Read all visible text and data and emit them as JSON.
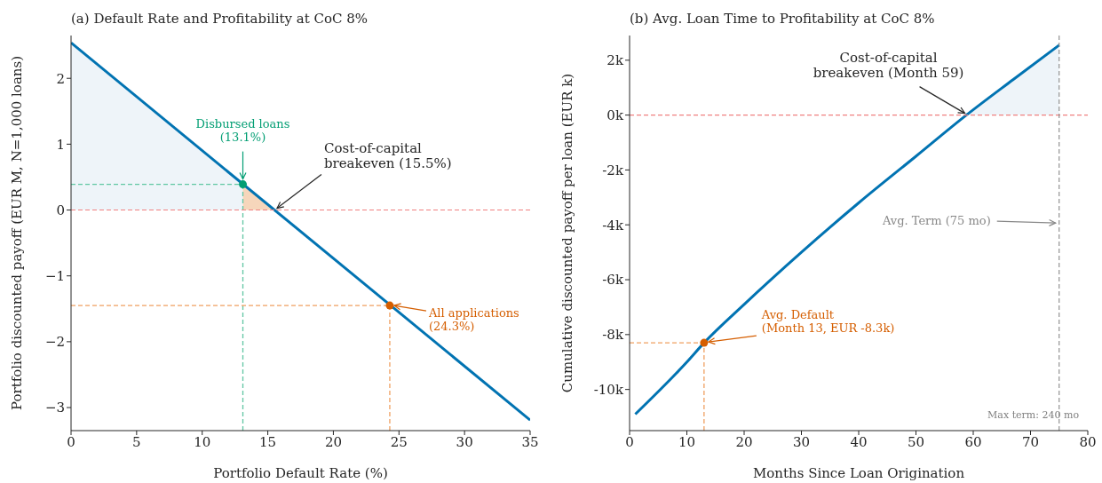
{
  "chart_data": [
    {
      "type": "line",
      "title": "(a) Default Rate and Profitability at CoC 8%",
      "xlabel": "Portfolio Default Rate (%)",
      "ylabel": "Portfolio discounted payoff (EUR M, N=1,000 loans)",
      "xlim": [
        0,
        35
      ],
      "xticks": [
        0,
        5,
        10,
        15,
        20,
        25,
        30,
        35
      ],
      "ylim": [
        -3.35,
        2.65
      ],
      "yticks": [
        {
          "value": -3,
          "label": "−3"
        },
        {
          "value": -2,
          "label": "−2"
        },
        {
          "value": -1,
          "label": "−1"
        },
        0,
        1,
        2
      ],
      "line_style": "solid",
      "series": [
        {
          "type": "area",
          "color": "#eef4f9",
          "x": [
            0,
            13.1
          ],
          "values": [
            2.54,
            0.39
          ]
        },
        {
          "type": "area",
          "color": "#f6d6bb",
          "x": [
            13.1,
            15.5
          ],
          "values": [
            0.39,
            0
          ]
        },
        {
          "type": "line",
          "color": "#0173b2",
          "x": [
            0,
            35
          ],
          "values": [
            2.54,
            -3.19
          ]
        },
        {
          "type": "line",
          "color": "#5fc6a2",
          "line_style": "dashed",
          "x": [
            0,
            13.1
          ],
          "values": [
            0.39,
            0.39
          ]
        },
        {
          "type": "line",
          "color": "#5fc6a2",
          "line_style": "dashed",
          "x": [
            13.1,
            13.1
          ],
          "values": [
            -3.35,
            0.39
          ]
        },
        {
          "type": "line",
          "color": "#f0a060",
          "line_style": "dashed",
          "x": [
            0,
            24.3
          ],
          "values": [
            -1.45,
            -1.45
          ]
        },
        {
          "type": "line",
          "color": "#f0a060",
          "line_style": "dashed",
          "x": [
            24.3,
            24.3
          ],
          "values": [
            -3.35,
            -1.45
          ]
        },
        {
          "type": "scatter",
          "marker": "circle",
          "color": "#029e73",
          "x": [
            13.1
          ],
          "values": [
            0.39
          ]
        },
        {
          "type": "scatter",
          "marker": "circle",
          "color": "#d55e00",
          "x": [
            24.3
          ],
          "values": [
            -1.45
          ]
        }
      ],
      "ref_lines": [
        {
          "axis": "y",
          "value": 0,
          "color": "#f08080",
          "line_style": "dashed"
        }
      ],
      "annotations": [
        {
          "text": "Disbursed loans\n(13.1%)",
          "x": 13.1,
          "y": 0.39
        },
        {
          "text": "Cost-of-capital\nbreakeven (15.5%)",
          "x": 15.5,
          "y": 0
        },
        {
          "text": "All applications\n(24.3%)",
          "x": 24.3,
          "y": -1.45
        }
      ]
    },
    {
      "type": "line",
      "title": "(b) Avg. Loan Time to Profitability at CoC 8%",
      "xlabel": "Months Since Loan Origination",
      "ylabel": "Cumulative discounted payoff per loan (EUR k)",
      "xlim": [
        0,
        80
      ],
      "xticks": [
        0,
        10,
        20,
        30,
        40,
        50,
        60,
        70,
        80
      ],
      "ylim": [
        -11.5,
        2.9
      ],
      "yticks": [
        {
          "value": -10,
          "label": "-10k"
        },
        {
          "value": -8,
          "label": "-8k"
        },
        {
          "value": -6,
          "label": "-6k"
        },
        {
          "value": -4,
          "label": "-4k"
        },
        {
          "value": -2,
          "label": "-2k"
        },
        {
          "value": 0,
          "label": "0k"
        },
        {
          "value": 2,
          "label": "2k"
        }
      ],
      "line_style": "solid",
      "series": [
        {
          "type": "area",
          "color": "#eef4f9",
          "x": [
            58.8,
            67,
            75
          ],
          "values": [
            0,
            1.3,
            2.55
          ]
        },
        {
          "type": "line",
          "color": "#0173b2",
          "x": [
            1,
            10,
            13,
            20,
            30,
            40,
            50,
            58.8,
            67,
            75
          ],
          "values": [
            -10.9,
            -9.0,
            -8.3,
            -6.9,
            -5.0,
            -3.2,
            -1.5,
            0,
            1.3,
            2.55
          ]
        },
        {
          "type": "line",
          "color": "#f0a060",
          "line_style": "dashed",
          "x": [
            0,
            13
          ],
          "values": [
            -8.3,
            -8.3
          ]
        },
        {
          "type": "line",
          "color": "#f0a060",
          "line_style": "dashed",
          "x": [
            13,
            13
          ],
          "values": [
            -11.5,
            -8.3
          ]
        },
        {
          "type": "scatter",
          "marker": "circle",
          "color": "#d55e00",
          "x": [
            13
          ],
          "values": [
            -8.3
          ]
        }
      ],
      "ref_lines": [
        {
          "axis": "y",
          "value": 0,
          "color": "#f08080",
          "line_style": "dashed"
        },
        {
          "axis": "x",
          "value": 75,
          "color": "#888888",
          "line_style": "dashed",
          "label": "Avg. Term (75 mo)"
        }
      ],
      "annotations": [
        {
          "text": "Cost-of-capital\nbreakeven (Month 59)",
          "x": 59,
          "y": 0
        },
        {
          "text": "Avg. Default\n(Month 13, EUR -8.3k)",
          "x": 13,
          "y": -8.3
        },
        "Max term: 240 mo"
      ]
    }
  ]
}
